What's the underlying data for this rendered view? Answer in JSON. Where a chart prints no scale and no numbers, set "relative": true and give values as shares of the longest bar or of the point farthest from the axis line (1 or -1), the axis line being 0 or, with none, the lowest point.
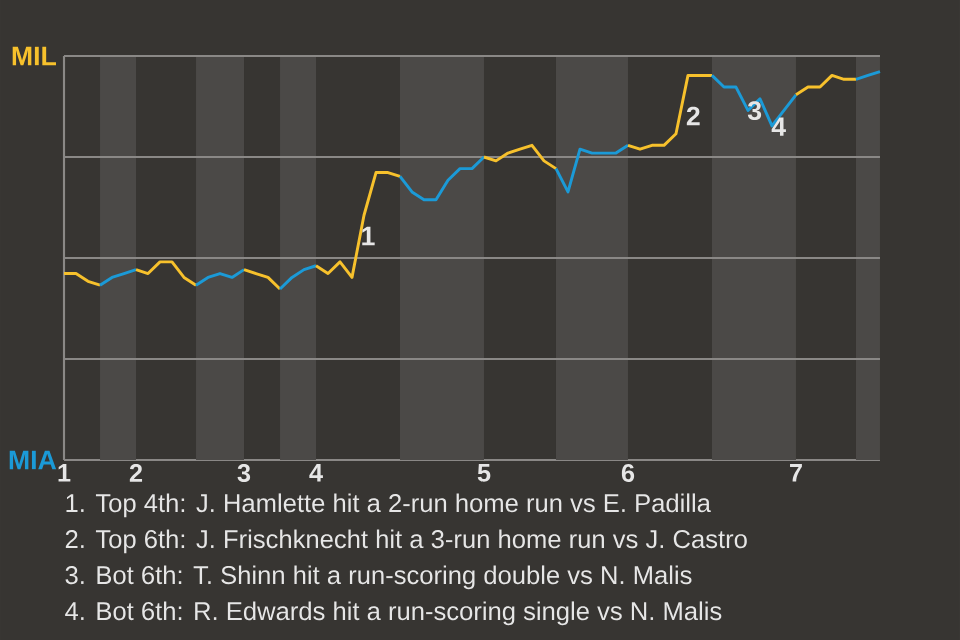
{
  "chart_data": {
    "type": "line",
    "relative": true,
    "grid": "y",
    "categories": [
      "1",
      null,
      null,
      null,
      null,
      null,
      "2",
      null,
      null,
      null,
      null,
      null,
      null,
      null,
      null,
      "3",
      null,
      null,
      null,
      null,
      null,
      "4",
      null,
      null,
      null,
      null,
      null,
      null,
      null,
      null,
      null,
      null,
      null,
      null,
      null,
      "5",
      null,
      null,
      null,
      null,
      null,
      null,
      null,
      null,
      null,
      null,
      null,
      "6",
      null,
      null,
      null,
      null,
      null,
      null,
      null,
      null,
      null,
      null,
      null,
      null,
      null,
      "7",
      null,
      null,
      null,
      null,
      null,
      null,
      null
    ],
    "series": [
      {
        "color": "#f7c12c",
        "values": [
          0.48,
          0.48,
          0.46,
          0.45,
          null,
          null,
          null,
          null,
          null,
          null,
          null,
          null,
          null,
          null,
          null,
          null,
          null,
          null,
          null,
          null,
          null,
          null,
          null,
          null,
          null,
          null,
          null,
          null,
          null,
          null,
          null,
          null,
          null,
          null,
          null,
          null,
          null,
          null,
          null,
          null,
          null,
          null,
          null,
          null,
          null,
          null,
          null,
          null,
          null,
          null,
          null,
          null,
          null,
          null,
          null,
          null,
          null,
          null,
          null,
          null,
          null,
          null,
          null,
          null,
          null,
          null,
          null,
          null,
          null
        ]
      },
      {
        "color": "#1b9ad7",
        "values": [
          null,
          null,
          null,
          0.45,
          0.47,
          0.48,
          0.49,
          null,
          null,
          null,
          null,
          null,
          null,
          null,
          null,
          null,
          null,
          null,
          null,
          null,
          null,
          null,
          null,
          null,
          null,
          null,
          null,
          null,
          null,
          null,
          null,
          null,
          null,
          null,
          null,
          null,
          null,
          null,
          null,
          null,
          null,
          null,
          null,
          null,
          null,
          null,
          null,
          null,
          null,
          null,
          null,
          null,
          null,
          null,
          null,
          null,
          null,
          null,
          null,
          null,
          null,
          null,
          null,
          null,
          null,
          null,
          null,
          null,
          null
        ]
      },
      {
        "color": "#f7c12c",
        "values": [
          null,
          null,
          null,
          null,
          null,
          null,
          0.49,
          0.48,
          0.51,
          0.51,
          0.47,
          0.45,
          null,
          null,
          null,
          null,
          null,
          null,
          null,
          null,
          null,
          null,
          null,
          null,
          null,
          null,
          null,
          null,
          null,
          null,
          null,
          null,
          null,
          null,
          null,
          null,
          null,
          null,
          null,
          null,
          null,
          null,
          null,
          null,
          null,
          null,
          null,
          null,
          null,
          null,
          null,
          null,
          null,
          null,
          null,
          null,
          null,
          null,
          null,
          null,
          null,
          null,
          null,
          null,
          null,
          null,
          null,
          null,
          null
        ]
      },
      {
        "color": "#1b9ad7",
        "values": [
          null,
          null,
          null,
          null,
          null,
          null,
          null,
          null,
          null,
          null,
          null,
          0.45,
          0.47,
          0.48,
          0.47,
          0.49,
          null,
          null,
          null,
          null,
          null,
          null,
          null,
          null,
          null,
          null,
          null,
          null,
          null,
          null,
          null,
          null,
          null,
          null,
          null,
          null,
          null,
          null,
          null,
          null,
          null,
          null,
          null,
          null,
          null,
          null,
          null,
          null,
          null,
          null,
          null,
          null,
          null,
          null,
          null,
          null,
          null,
          null,
          null,
          null,
          null,
          null,
          null,
          null,
          null,
          null,
          null,
          null,
          null
        ]
      },
      {
        "color": "#f7c12c",
        "values": [
          null,
          null,
          null,
          null,
          null,
          null,
          null,
          null,
          null,
          null,
          null,
          null,
          null,
          null,
          null,
          0.49,
          0.48,
          0.47,
          0.44,
          null,
          null,
          null,
          null,
          null,
          null,
          null,
          null,
          null,
          null,
          null,
          null,
          null,
          null,
          null,
          null,
          null,
          null,
          null,
          null,
          null,
          null,
          null,
          null,
          null,
          null,
          null,
          null,
          null,
          null,
          null,
          null,
          null,
          null,
          null,
          null,
          null,
          null,
          null,
          null,
          null,
          null,
          null,
          null,
          null,
          null,
          null,
          null,
          null,
          null
        ]
      },
      {
        "color": "#1b9ad7",
        "values": [
          null,
          null,
          null,
          null,
          null,
          null,
          null,
          null,
          null,
          null,
          null,
          null,
          null,
          null,
          null,
          null,
          null,
          null,
          0.44,
          0.47,
          0.49,
          0.5,
          null,
          null,
          null,
          null,
          null,
          null,
          null,
          null,
          null,
          null,
          null,
          null,
          null,
          null,
          null,
          null,
          null,
          null,
          null,
          null,
          null,
          null,
          null,
          null,
          null,
          null,
          null,
          null,
          null,
          null,
          null,
          null,
          null,
          null,
          null,
          null,
          null,
          null,
          null,
          null,
          null,
          null,
          null,
          null,
          null,
          null,
          null
        ]
      },
      {
        "color": "#f7c12c",
        "values": [
          null,
          null,
          null,
          null,
          null,
          null,
          null,
          null,
          null,
          null,
          null,
          null,
          null,
          null,
          null,
          null,
          null,
          null,
          null,
          null,
          null,
          0.5,
          0.48,
          0.51,
          0.47,
          0.63,
          0.74,
          0.74,
          0.73,
          null,
          null,
          null,
          null,
          null,
          null,
          null,
          null,
          null,
          null,
          null,
          null,
          null,
          null,
          null,
          null,
          null,
          null,
          null,
          null,
          null,
          null,
          null,
          null,
          null,
          null,
          null,
          null,
          null,
          null,
          null,
          null,
          null,
          null,
          null,
          null,
          null,
          null,
          null,
          null
        ]
      },
      {
        "color": "#1b9ad7",
        "values": [
          null,
          null,
          null,
          null,
          null,
          null,
          null,
          null,
          null,
          null,
          null,
          null,
          null,
          null,
          null,
          null,
          null,
          null,
          null,
          null,
          null,
          null,
          null,
          null,
          null,
          null,
          null,
          null,
          0.73,
          0.69,
          0.67,
          0.67,
          0.72,
          0.75,
          0.75,
          0.78,
          null,
          null,
          null,
          null,
          null,
          null,
          null,
          null,
          null,
          null,
          null,
          null,
          null,
          null,
          null,
          null,
          null,
          null,
          null,
          null,
          null,
          null,
          null,
          null,
          null,
          null,
          null,
          null,
          null,
          null,
          null,
          null,
          null
        ]
      },
      {
        "color": "#f7c12c",
        "values": [
          null,
          null,
          null,
          null,
          null,
          null,
          null,
          null,
          null,
          null,
          null,
          null,
          null,
          null,
          null,
          null,
          null,
          null,
          null,
          null,
          null,
          null,
          null,
          null,
          null,
          null,
          null,
          null,
          null,
          null,
          null,
          null,
          null,
          null,
          null,
          0.78,
          0.77,
          0.79,
          0.8,
          0.81,
          0.77,
          0.75,
          null,
          null,
          null,
          null,
          null,
          null,
          null,
          null,
          null,
          null,
          null,
          null,
          null,
          null,
          null,
          null,
          null,
          null,
          null,
          null,
          null,
          null,
          null,
          null,
          null,
          null,
          null
        ]
      },
      {
        "color": "#1b9ad7",
        "values": [
          null,
          null,
          null,
          null,
          null,
          null,
          null,
          null,
          null,
          null,
          null,
          null,
          null,
          null,
          null,
          null,
          null,
          null,
          null,
          null,
          null,
          null,
          null,
          null,
          null,
          null,
          null,
          null,
          null,
          null,
          null,
          null,
          null,
          null,
          null,
          null,
          null,
          null,
          null,
          null,
          null,
          0.75,
          0.69,
          0.8,
          0.79,
          0.79,
          0.79,
          0.81,
          null,
          null,
          null,
          null,
          null,
          null,
          null,
          null,
          null,
          null,
          null,
          null,
          null,
          null,
          null,
          null,
          null,
          null,
          null,
          null,
          null
        ]
      },
      {
        "color": "#f7c12c",
        "values": [
          null,
          null,
          null,
          null,
          null,
          null,
          null,
          null,
          null,
          null,
          null,
          null,
          null,
          null,
          null,
          null,
          null,
          null,
          null,
          null,
          null,
          null,
          null,
          null,
          null,
          null,
          null,
          null,
          null,
          null,
          null,
          null,
          null,
          null,
          null,
          null,
          null,
          null,
          null,
          null,
          null,
          null,
          null,
          null,
          null,
          null,
          null,
          0.81,
          0.8,
          0.81,
          0.81,
          0.84,
          0.99,
          0.99,
          0.99,
          null,
          null,
          null,
          null,
          null,
          null,
          null,
          null,
          null,
          null,
          null,
          null,
          null,
          null
        ]
      },
      {
        "color": "#1b9ad7",
        "values": [
          null,
          null,
          null,
          null,
          null,
          null,
          null,
          null,
          null,
          null,
          null,
          null,
          null,
          null,
          null,
          null,
          null,
          null,
          null,
          null,
          null,
          null,
          null,
          null,
          null,
          null,
          null,
          null,
          null,
          null,
          null,
          null,
          null,
          null,
          null,
          null,
          null,
          null,
          null,
          null,
          null,
          null,
          null,
          null,
          null,
          null,
          null,
          null,
          null,
          null,
          null,
          null,
          null,
          null,
          0.99,
          0.96,
          0.96,
          0.9,
          0.93,
          0.86,
          0.9,
          0.94,
          null,
          null,
          null,
          null,
          null,
          null,
          null
        ]
      },
      {
        "color": "#f7c12c",
        "values": [
          null,
          null,
          null,
          null,
          null,
          null,
          null,
          null,
          null,
          null,
          null,
          null,
          null,
          null,
          null,
          null,
          null,
          null,
          null,
          null,
          null,
          null,
          null,
          null,
          null,
          null,
          null,
          null,
          null,
          null,
          null,
          null,
          null,
          null,
          null,
          null,
          null,
          null,
          null,
          null,
          null,
          null,
          null,
          null,
          null,
          null,
          null,
          null,
          null,
          null,
          null,
          null,
          null,
          null,
          null,
          null,
          null,
          null,
          null,
          null,
          null,
          0.94,
          0.96,
          0.96,
          0.99,
          0.98,
          0.98,
          null,
          null
        ]
      },
      {
        "color": "#1b9ad7",
        "values": [
          null,
          null,
          null,
          null,
          null,
          null,
          null,
          null,
          null,
          null,
          null,
          null,
          null,
          null,
          null,
          null,
          null,
          null,
          null,
          null,
          null,
          null,
          null,
          null,
          null,
          null,
          null,
          null,
          null,
          null,
          null,
          null,
          null,
          null,
          null,
          null,
          null,
          null,
          null,
          null,
          null,
          null,
          null,
          null,
          null,
          null,
          null,
          null,
          null,
          null,
          null,
          null,
          null,
          null,
          null,
          null,
          null,
          null,
          null,
          null,
          null,
          null,
          null,
          null,
          null,
          null,
          0.98,
          0.99,
          1
        ]
      }
    ],
    "annotations": [
      "MIL",
      "MIA",
      "1",
      "2",
      "3",
      "4",
      "1. Top 4th: J. Hamlette hit a 2-run home run vs E. Padilla",
      "2. Top 6th: J. Frischknecht hit a 3-run home run vs J. Castro",
      "3. Bot 6th: T. Shinn hit a run-scoring double vs N. Malis",
      "4. Bot 6th: R. Edwards hit a run-scoring single vs N. Malis"
    ]
  }
}
